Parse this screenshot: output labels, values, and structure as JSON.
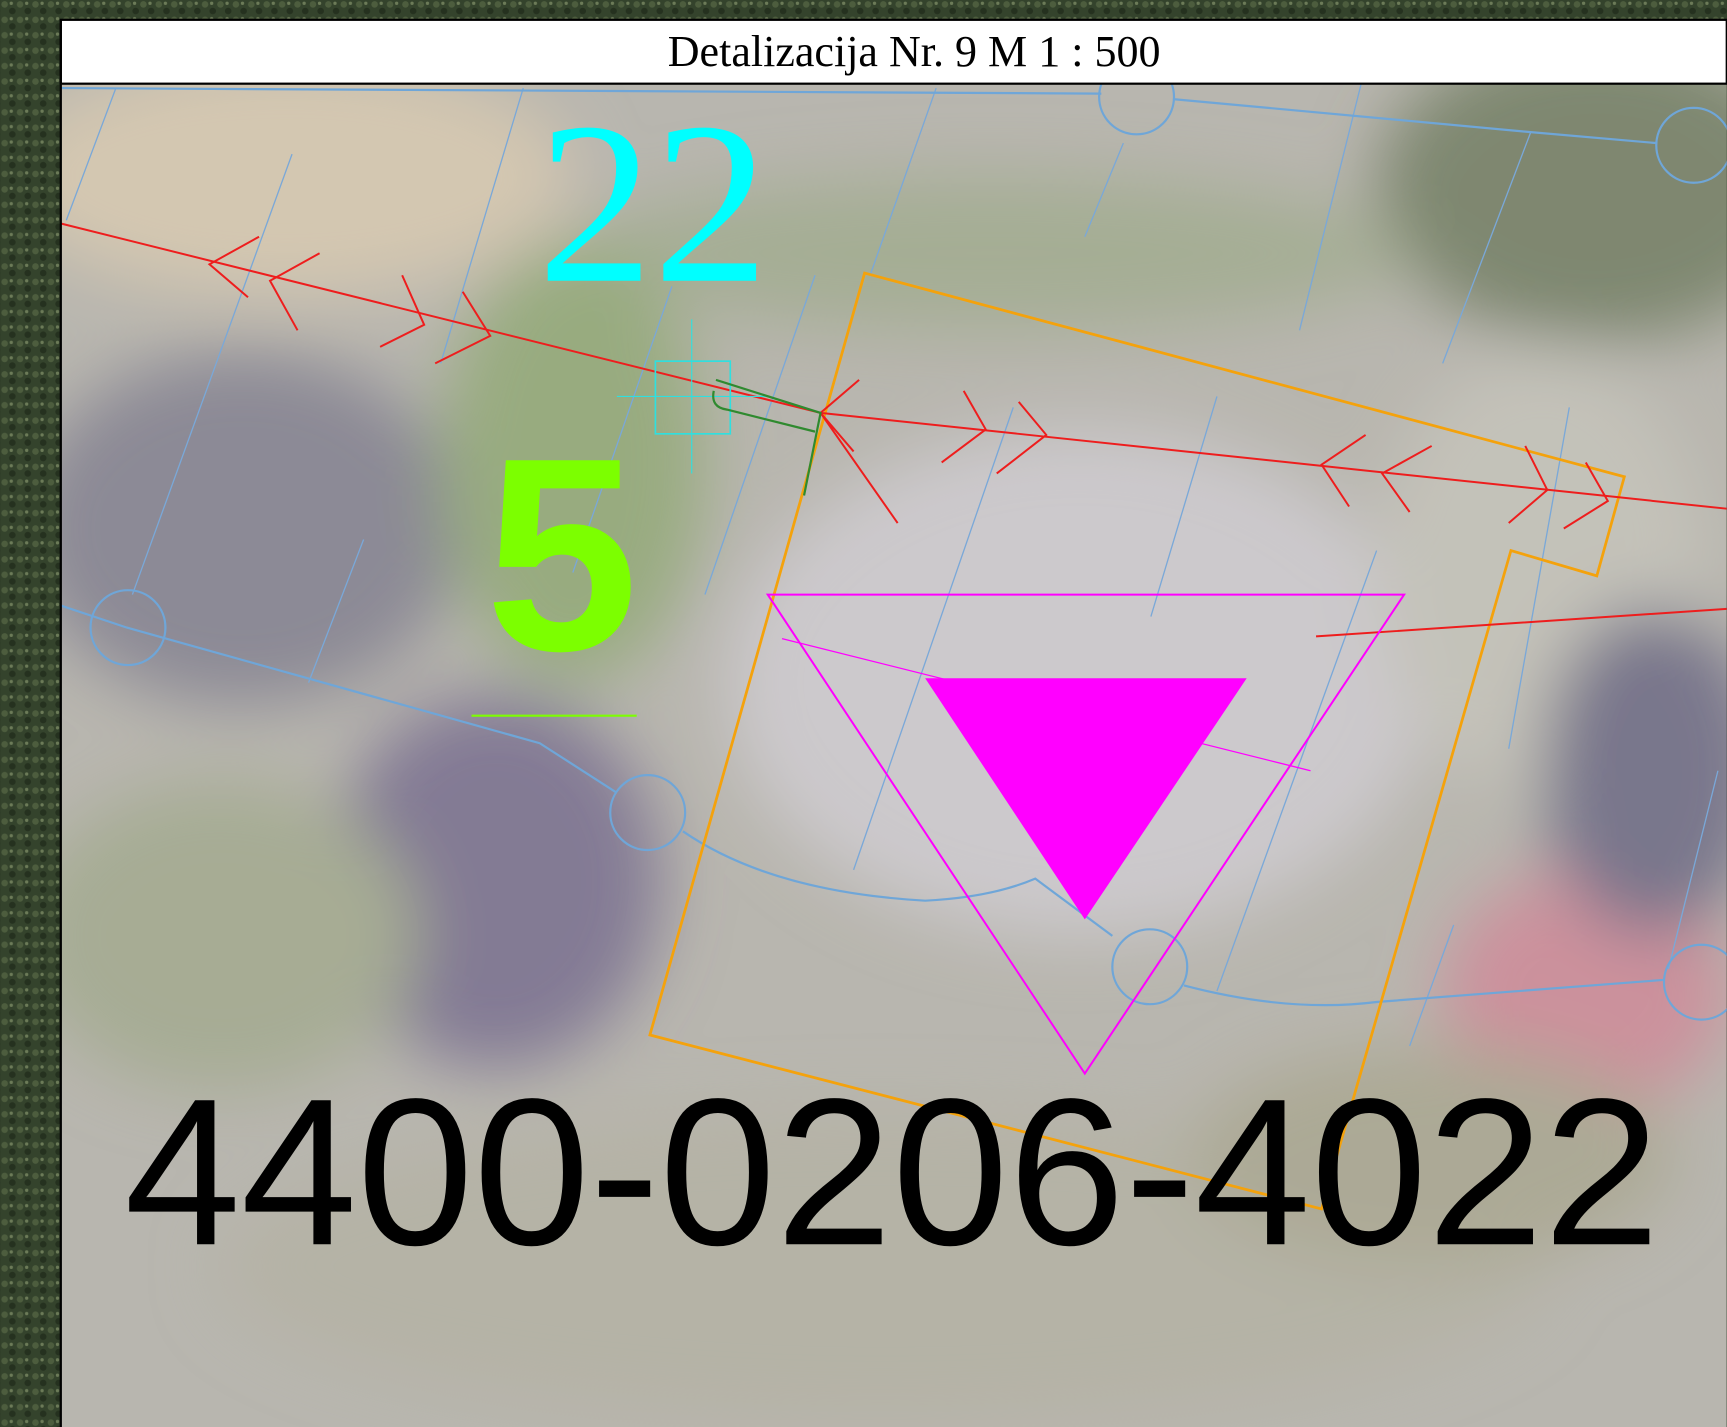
{
  "map": {
    "title": "Detalizacija Nr. 9 M 1 : 500",
    "labels": [
      "22",
      "5",
      "4400-0206-4022"
    ]
  }
}
